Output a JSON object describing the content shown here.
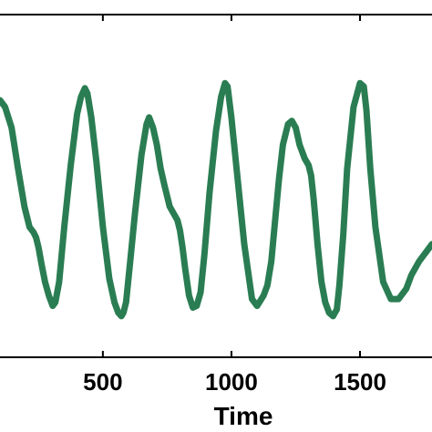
{
  "chart_data": {
    "type": "line",
    "xlabel": "Time",
    "ylabel": "",
    "title": "",
    "xlim": [
      100,
      1780
    ],
    "ylim": [
      0,
      1
    ],
    "xticks": [
      {
        "value": 500,
        "label": "500"
      },
      {
        "value": 1000,
        "label": "1000"
      },
      {
        "value": 1500,
        "label": "1500"
      }
    ],
    "grid": false,
    "series": [
      {
        "color": "#2a7d52",
        "x": [
          100,
          120,
          145,
          170,
          195,
          215,
          230,
          240,
          250,
          262,
          275,
          290,
          305,
          315,
          330,
          350,
          375,
          400,
          415,
          430,
          440,
          455,
          475,
          500,
          525,
          545,
          560,
          572,
          580,
          590,
          605,
          625,
          650,
          670,
          680,
          695,
          710,
          725,
          740,
          760,
          775,
          790,
          800,
          810,
          820,
          835,
          850,
          865,
          880,
          895,
          915,
          940,
          960,
          975,
          985,
          1000,
          1020,
          1050,
          1080,
          1100,
          1125,
          1140,
          1155,
          1170,
          1185,
          1200,
          1220,
          1235,
          1250,
          1265,
          1285,
          1300,
          1310,
          1320,
          1335,
          1350,
          1365,
          1380,
          1395,
          1410,
          1420,
          1435,
          1450,
          1475,
          1500,
          1515,
          1525,
          1540,
          1560,
          1590,
          1620,
          1650,
          1680,
          1700,
          1730,
          1760,
          1780
        ],
        "y": [
          0.75,
          0.73,
          0.67,
          0.55,
          0.44,
          0.38,
          0.365,
          0.35,
          0.32,
          0.27,
          0.22,
          0.18,
          0.15,
          0.16,
          0.22,
          0.38,
          0.56,
          0.71,
          0.76,
          0.785,
          0.77,
          0.7,
          0.57,
          0.38,
          0.23,
          0.16,
          0.13,
          0.12,
          0.13,
          0.16,
          0.27,
          0.42,
          0.59,
          0.68,
          0.7,
          0.67,
          0.62,
          0.55,
          0.5,
          0.44,
          0.42,
          0.4,
          0.37,
          0.32,
          0.26,
          0.18,
          0.145,
          0.15,
          0.19,
          0.3,
          0.48,
          0.66,
          0.76,
          0.8,
          0.79,
          0.7,
          0.55,
          0.33,
          0.17,
          0.15,
          0.18,
          0.21,
          0.28,
          0.4,
          0.52,
          0.62,
          0.68,
          0.69,
          0.67,
          0.62,
          0.58,
          0.56,
          0.53,
          0.46,
          0.33,
          0.22,
          0.16,
          0.13,
          0.12,
          0.14,
          0.21,
          0.36,
          0.55,
          0.73,
          0.8,
          0.79,
          0.72,
          0.55,
          0.38,
          0.22,
          0.17,
          0.17,
          0.2,
          0.24,
          0.28,
          0.31,
          0.33
        ]
      }
    ]
  }
}
